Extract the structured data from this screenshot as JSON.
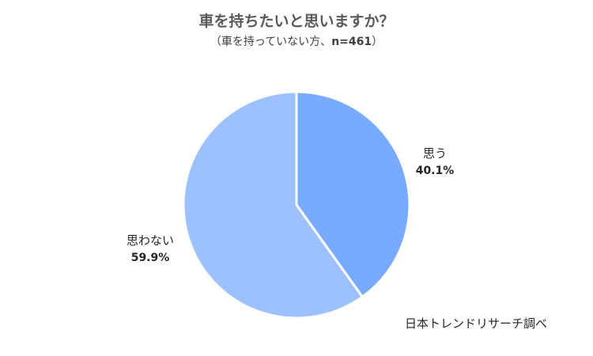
{
  "chart_data": {
    "type": "pie",
    "title": "車を持ちたいと思いますか？",
    "subtitle_prefix": "（車を持っていない方、",
    "subtitle_n": "n=461",
    "subtitle_suffix": "）",
    "slices": [
      {
        "label": "思う",
        "value": 40.1,
        "value_label": "40.1%",
        "color": "#78aaff"
      },
      {
        "label": "思わない",
        "value": 59.9,
        "value_label": "59.9%",
        "color": "#9dc0ff"
      }
    ],
    "source": "日本トレンドリサーチ調べ"
  }
}
